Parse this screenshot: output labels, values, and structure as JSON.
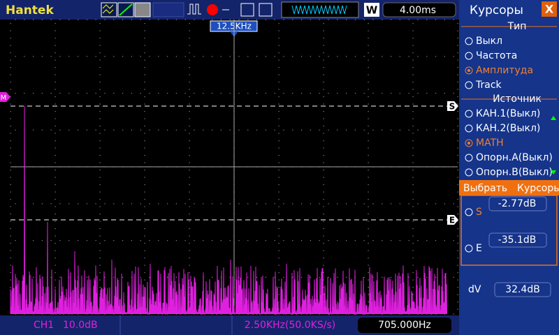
{
  "top_bar": {
    "brand": "Hantek",
    "trigger_freq": "12.5KHz",
    "mode": "W",
    "timebase": "4.00ms"
  },
  "screen": {
    "markers": {
      "math": "M",
      "cursor_s": "S",
      "cursor_e": "E"
    }
  },
  "bottom_bar": {
    "channel": "CH1",
    "scale": "10.0dB",
    "sample": "2.50KHz(50.0KS/s)",
    "frequency": "705.000Hz"
  },
  "menu": {
    "title": "Курсоры",
    "close": "X",
    "type": {
      "label": "Тип",
      "options": [
        "Выкл",
        "Частота",
        "Амплитуда",
        "Track"
      ],
      "selected": 2
    },
    "source": {
      "label": "Источник",
      "options": [
        "КАН.1(Выкл)",
        "КАН.2(Выкл)",
        "MATH",
        "Опорн.А(Выкл)",
        "Опорн.В(Выкл)"
      ],
      "selected": 2
    },
    "select": {
      "label": "Выбрать",
      "value": "Курсоры"
    },
    "readouts": [
      {
        "label": "S",
        "value": "-2.77dB"
      },
      {
        "label": "E",
        "value": "-35.1dB"
      },
      {
        "label": "dV",
        "value": "32.4dB"
      }
    ]
  }
}
